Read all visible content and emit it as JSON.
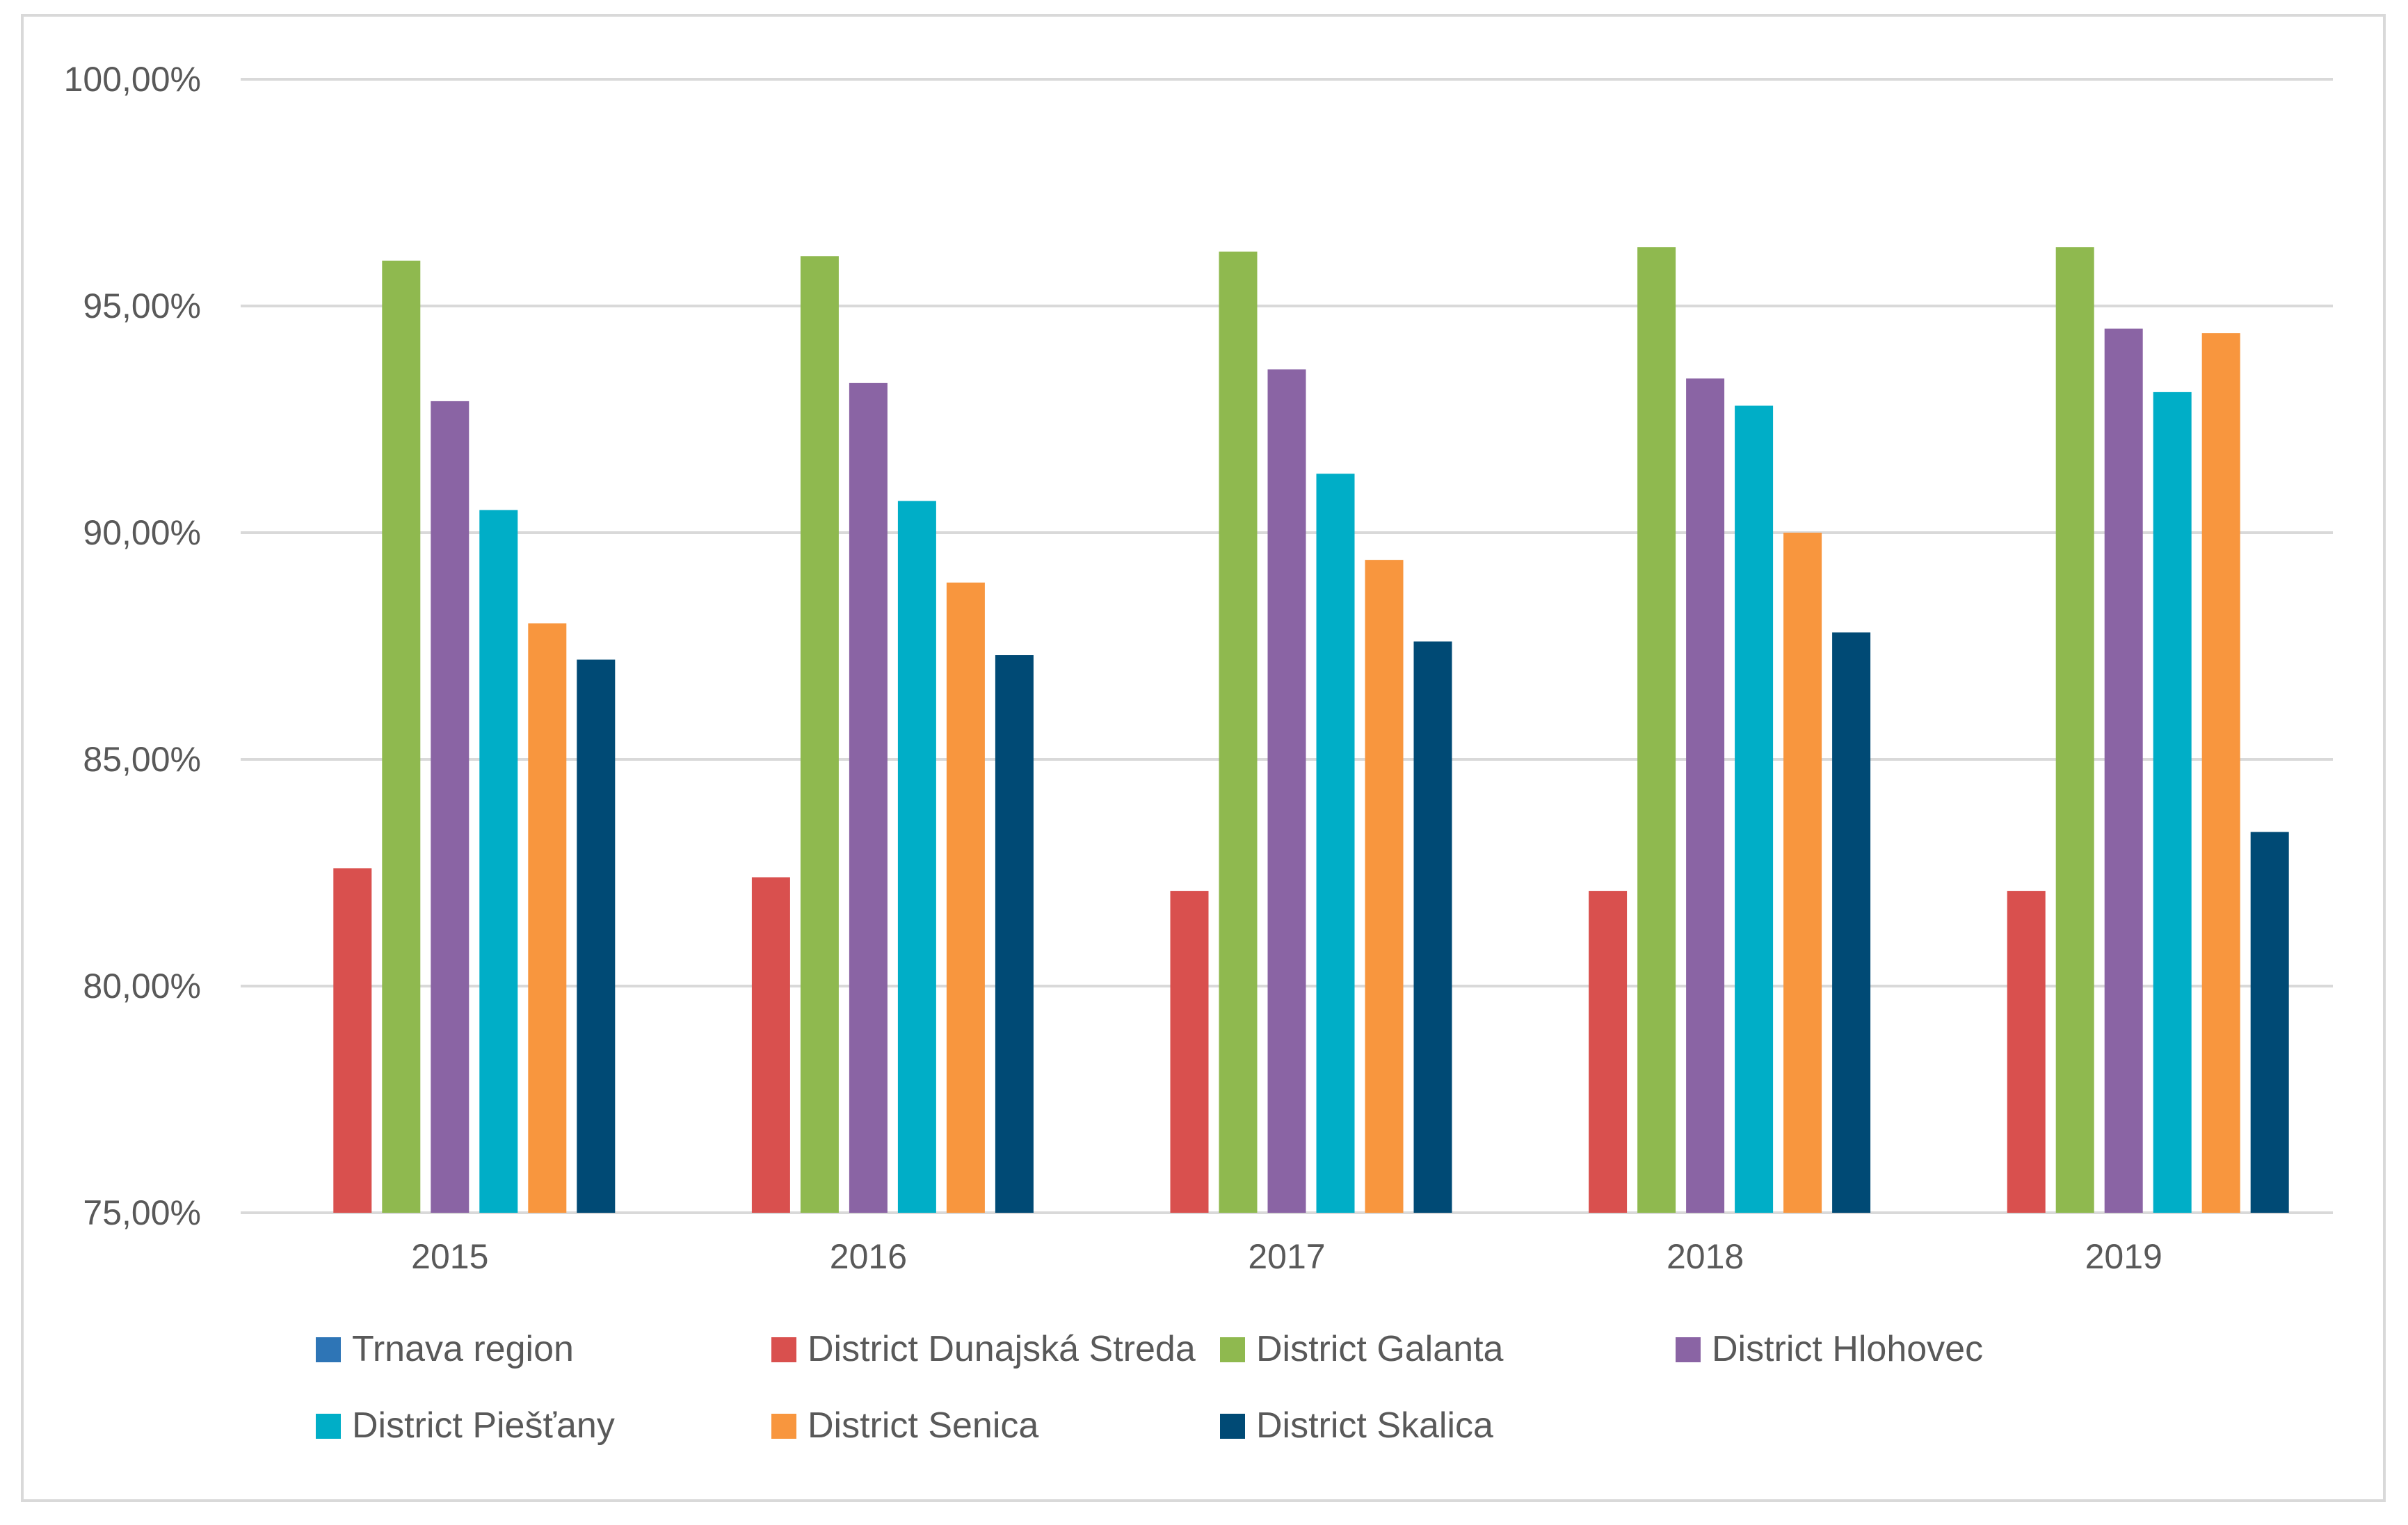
{
  "chart_data": {
    "type": "bar",
    "title": "",
    "xlabel": "",
    "ylabel": "",
    "ylim": [
      75,
      100
    ],
    "yticks": [
      75,
      80,
      85,
      90,
      95,
      100
    ],
    "ytick_labels": [
      "75,00%",
      "80,00%",
      "85,00%",
      "90,00%",
      "95,00%",
      "100,00%"
    ],
    "categories": [
      "2015",
      "2016",
      "2017",
      "2018",
      "2019"
    ],
    "grid": true,
    "legend_position": "bottom",
    "series": [
      {
        "name": "Trnava region",
        "color": "#2e75b6",
        "values": [
          null,
          null,
          null,
          null,
          null
        ]
      },
      {
        "name": "District Dunajská Streda",
        "color": "#d9504e",
        "values": [
          82.6,
          82.4,
          82.1,
          82.1,
          82.1
        ]
      },
      {
        "name": "District Galanta",
        "color": "#8fb94f",
        "values": [
          96.0,
          96.1,
          96.2,
          96.3,
          96.3
        ]
      },
      {
        "name": "District Hlohovec",
        "color": "#8a64a4",
        "values": [
          92.9,
          93.3,
          93.6,
          93.4,
          94.5
        ]
      },
      {
        "name": "District Piešťany",
        "color": "#00aec7",
        "values": [
          90.5,
          90.7,
          91.3,
          92.8,
          93.1
        ]
      },
      {
        "name": "District Senica",
        "color": "#f8963e",
        "values": [
          88.0,
          88.9,
          89.4,
          90.0,
          94.4
        ]
      },
      {
        "name": "District Skalica",
        "color": "#004a75",
        "values": [
          87.2,
          87.3,
          87.6,
          87.8,
          83.4
        ]
      }
    ]
  }
}
